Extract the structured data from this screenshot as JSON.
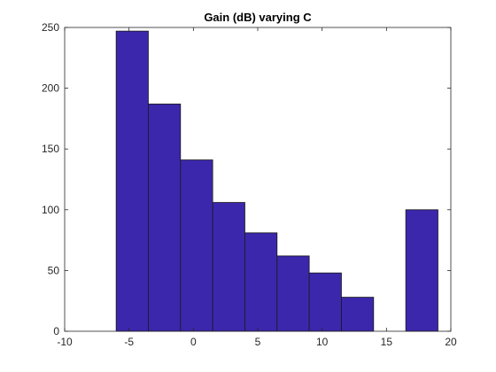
{
  "chart_data": {
    "type": "bar",
    "title": "Gain (dB) varying C",
    "xlabel": "",
    "ylabel": "",
    "xlim": [
      -10,
      20
    ],
    "ylim": [
      0,
      250
    ],
    "xticks": [
      -10,
      -5,
      0,
      5,
      10,
      15,
      20
    ],
    "yticks": [
      0,
      50,
      100,
      150,
      200,
      250
    ],
    "bin_edges": [
      -6.0,
      -3.5,
      -1.0,
      1.5,
      4.0,
      6.5,
      9.0,
      11.5,
      14.0,
      16.5,
      19.0
    ],
    "values": [
      247,
      187,
      141,
      106,
      81,
      62,
      48,
      28,
      0,
      100
    ],
    "grid": false,
    "colors": {
      "bar_fill": "#3b27ab",
      "bar_edge": "#1a1a1a",
      "axes": "#262626"
    }
  }
}
